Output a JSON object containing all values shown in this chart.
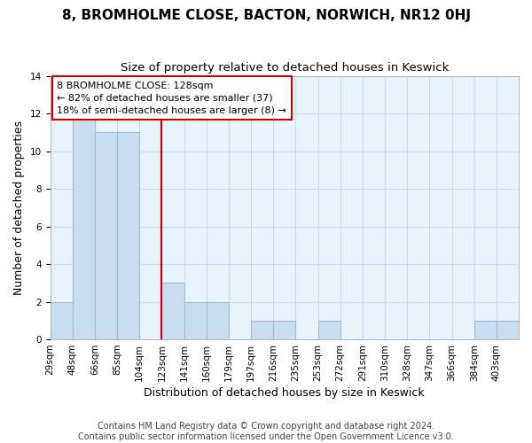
{
  "title": "8, BROMHOLME CLOSE, BACTON, NORWICH, NR12 0HJ",
  "subtitle": "Size of property relative to detached houses in Keswick",
  "xlabel": "Distribution of detached houses by size in Keswick",
  "ylabel": "Number of detached properties",
  "bin_labels": [
    "29sqm",
    "48sqm",
    "66sqm",
    "85sqm",
    "104sqm",
    "123sqm",
    "141sqm",
    "160sqm",
    "179sqm",
    "197sqm",
    "216sqm",
    "235sqm",
    "253sqm",
    "272sqm",
    "291sqm",
    "310sqm",
    "328sqm",
    "347sqm",
    "366sqm",
    "384sqm",
    "403sqm"
  ],
  "heights": [
    2,
    12,
    11,
    11,
    0,
    3,
    2,
    2,
    0,
    1,
    1,
    0,
    1,
    0,
    0,
    0,
    0,
    0,
    0,
    1,
    1
  ],
  "bar_color": "#c8ddf0",
  "bar_edge_color": "#9bbdd8",
  "highlight_bar_index": 5,
  "highlight_line_color": "#cc0000",
  "annotation_text": "8 BROMHOLME CLOSE: 128sqm\n← 82% of detached houses are smaller (37)\n18% of semi-detached houses are larger (8) →",
  "annotation_box_color": "#ffffff",
  "annotation_box_edge": "#cc0000",
  "ylim": [
    0,
    14
  ],
  "yticks": [
    0,
    2,
    4,
    6,
    8,
    10,
    12,
    14
  ],
  "bg_color": "#e8f4fc",
  "grid_color": "#c8ddf0",
  "footer": "Contains HM Land Registry data © Crown copyright and database right 2024.\nContains public sector information licensed under the Open Government Licence v3.0.",
  "title_fontsize": 11,
  "subtitle_fontsize": 9.5,
  "xlabel_fontsize": 9,
  "ylabel_fontsize": 9,
  "tick_fontsize": 7.5,
  "annotation_fontsize": 8,
  "footer_fontsize": 7
}
